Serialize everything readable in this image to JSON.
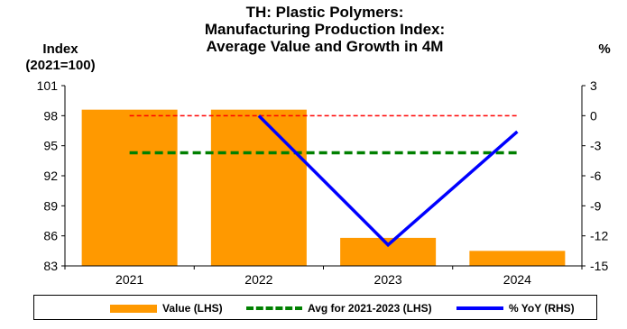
{
  "chart_data": {
    "type": "bar+line",
    "title_lines": [
      "TH: Plastic Polymers:",
      "Manufacturing Production Index:",
      "Average Value and Growth in 4M"
    ],
    "left_axis_label": [
      "Index",
      "(2021=100)"
    ],
    "right_axis_label": "%",
    "categories": [
      "2021",
      "2022",
      "2023",
      "2024"
    ],
    "left_ylim": [
      83,
      101
    ],
    "left_ticks": [
      83,
      86,
      89,
      92,
      95,
      98,
      101
    ],
    "right_ylim": [
      -15,
      3
    ],
    "right_ticks": [
      -15,
      -12,
      -9,
      -6,
      -3,
      0,
      3
    ],
    "series": [
      {
        "name": "Value (LHS)",
        "kind": "bar",
        "axis": "left",
        "color": "#FF9900",
        "values": [
          98.6,
          98.6,
          85.8,
          84.5
        ]
      },
      {
        "name": "Avg for 2021-2023 (LHS)",
        "kind": "dashed-line",
        "axis": "left",
        "color": "#008000",
        "values": [
          94.3,
          94.3,
          94.3,
          94.3
        ]
      },
      {
        "name": "% YoY (RHS)",
        "kind": "line",
        "axis": "right",
        "color": "#0000FF",
        "values": [
          null,
          0.0,
          -12.9,
          -1.6
        ]
      }
    ],
    "zero_reference": {
      "axis": "right",
      "value": 0,
      "color": "#FF0000",
      "style": "dashed"
    },
    "legend_position": "bottom"
  }
}
